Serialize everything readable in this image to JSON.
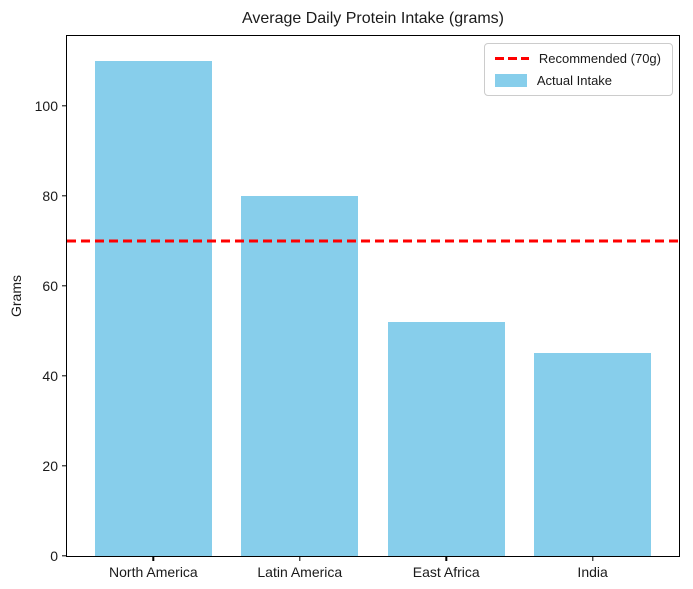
{
  "chart_data": {
    "type": "bar",
    "title": "Average Daily Protein Intake (grams)",
    "xlabel": "",
    "ylabel": "Grams",
    "categories": [
      "North America",
      "Latin America",
      "East Africa",
      "India"
    ],
    "values": [
      110,
      80,
      52,
      45
    ],
    "series_name": "Actual Intake",
    "bar_color": "#87CEEB",
    "ylim": [
      0,
      115.5
    ],
    "yticks": [
      0,
      20,
      40,
      60,
      80,
      100
    ],
    "grid": false,
    "reference_line": {
      "value": 70,
      "label": "Recommended (70g)",
      "color": "#ff0000",
      "style": "dashed"
    },
    "legend": {
      "position": "upper right",
      "entries": [
        {
          "label": "Recommended (70g)",
          "swatch": "dashed-line",
          "color": "#ff0000"
        },
        {
          "label": "Actual Intake",
          "swatch": "patch",
          "color": "#87CEEB"
        }
      ]
    }
  }
}
